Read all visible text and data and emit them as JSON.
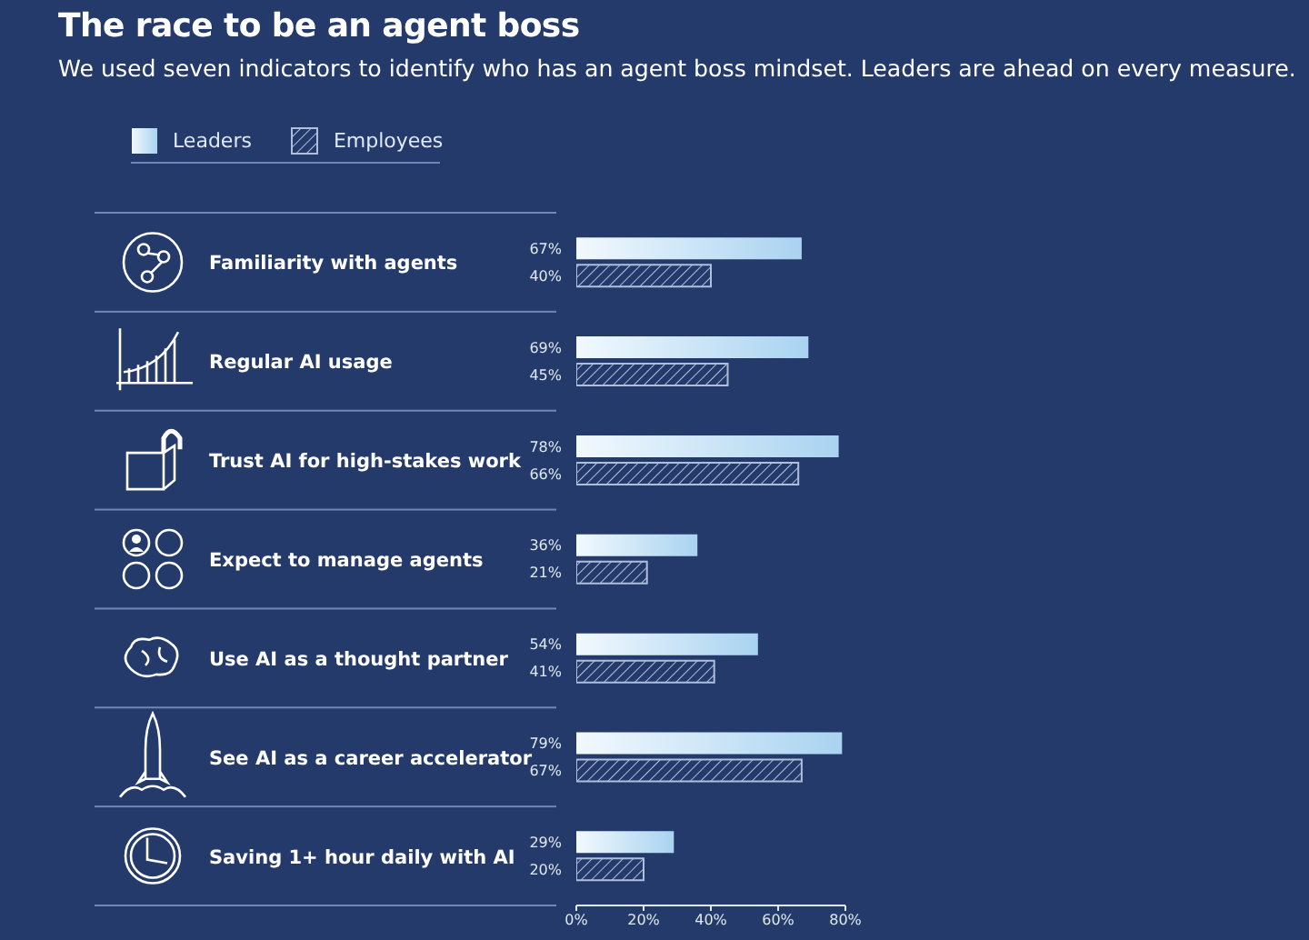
{
  "chart_data": {
    "type": "bar",
    "orientation": "horizontal",
    "title": "The race to be an agent boss",
    "subtitle": "We used seven indicators to identify who has an agent boss mindset. Leaders are ahead on every measure.",
    "categories": [
      "Familiarity with agents",
      "Regular AI usage",
      "Trust AI for high-stakes work",
      "Expect to manage agents",
      "Use AI as a thought partner",
      "See AI as a career accelerator",
      "Saving 1+ hour daily with AI"
    ],
    "series": [
      {
        "name": "Leaders",
        "color": "#a9d3f0",
        "values": [
          67,
          69,
          78,
          36,
          54,
          79,
          29
        ],
        "value_labels": [
          "67%",
          "69%",
          "78%",
          "36%",
          "54%",
          "79%",
          "29%"
        ]
      },
      {
        "name": "Employees",
        "color": "#aebfdc",
        "values": [
          40,
          45,
          66,
          21,
          41,
          67,
          20
        ],
        "value_labels": [
          "40%",
          "45%",
          "66%",
          "21%",
          "41%",
          "67%",
          "20%"
        ]
      }
    ],
    "xlim": [
      0,
      80
    ],
    "xticks": [
      {
        "value": 0,
        "label": "0%"
      },
      {
        "value": 20,
        "label": "20%"
      },
      {
        "value": 40,
        "label": "40%"
      },
      {
        "value": 60,
        "label": "60%"
      },
      {
        "value": 80,
        "label": "80%"
      }
    ],
    "legend": "top left",
    "grid": false
  }
}
